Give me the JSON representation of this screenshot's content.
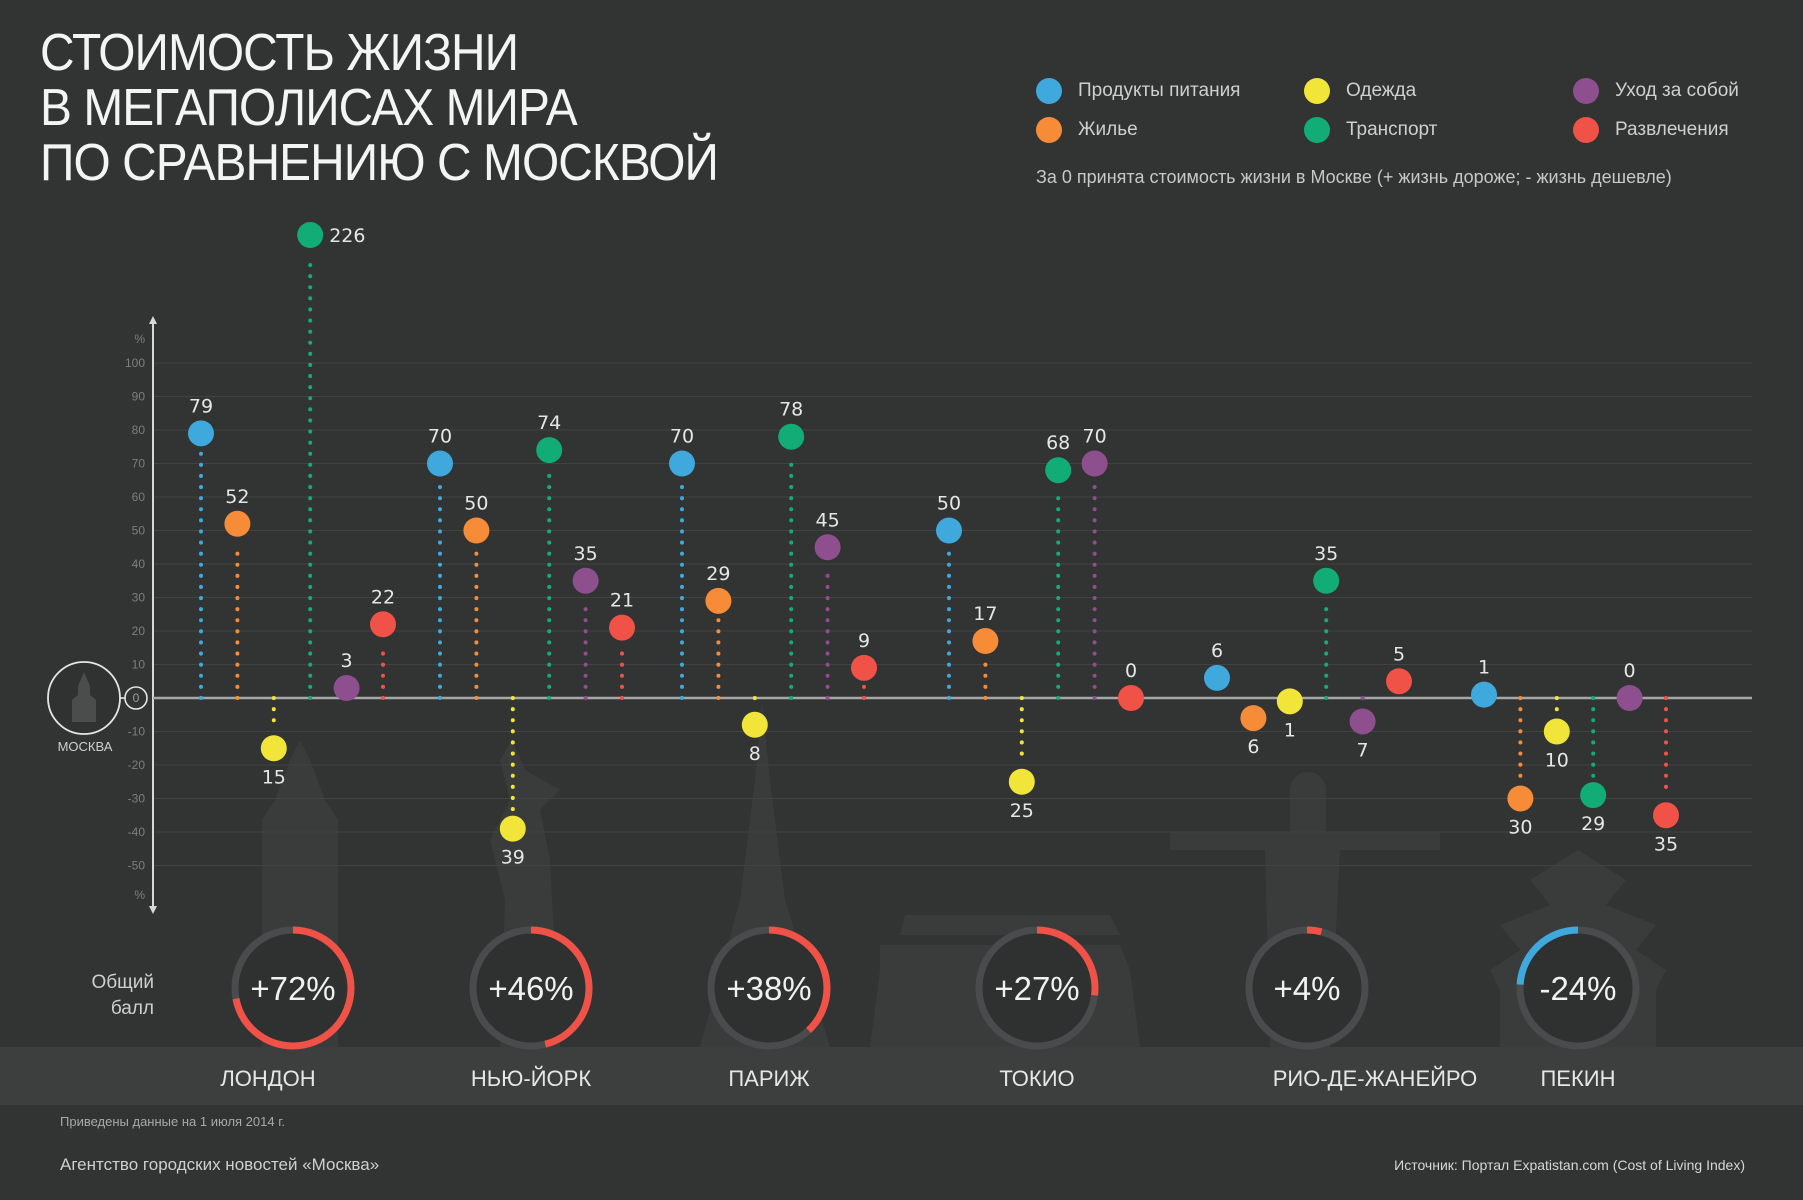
{
  "title_lines": [
    "СТОИМОСТЬ ЖИЗНИ",
    "В МЕГАПОЛИСАХ МИРА",
    "ПО СРАВНЕНИЮ С МОСКВОЙ"
  ],
  "legend": [
    {
      "label": "Продукты питания",
      "color": "#3fa8dc"
    },
    {
      "label": "Жилье",
      "color": "#f68b38"
    },
    {
      "label": "Одежда",
      "color": "#f2e53a"
    },
    {
      "label": "Транспорт",
      "color": "#12ad76"
    },
    {
      "label": "Уход за собой",
      "color": "#8e4f8e"
    },
    {
      "label": "Развлечения",
      "color": "#f05248"
    }
  ],
  "subtitle": "За 0 принята стоимость жизни в Москве (+ жизнь дороже; - жизнь дешевле)",
  "baseline_label": "МОСКВА",
  "score_label_lines": [
    "Общий",
    "балл"
  ],
  "footnote": "Приведены данные на 1 июля 2014 г.",
  "agency": "Агентство городских новостей «Москва»",
  "source": "Источник: Портал Expatistan.com (Cost of Living Index)",
  "colors": {
    "positive_gauge": "#f05248",
    "negative_gauge": "#3fa8dc",
    "gauge_track": "#4a4b4c"
  },
  "chart_data": {
    "type": "scatter",
    "subtype": "lollipop",
    "title": "СТОИМОСТЬ ЖИЗНИ В МЕГАПОЛИСАХ МИРА ПО СРАВНЕНИЮ С МОСКВОЙ",
    "ylabel": "%",
    "ylim": [
      -60,
      110
    ],
    "yticks": [
      100,
      90,
      80,
      70,
      60,
      50,
      40,
      30,
      20,
      10,
      0,
      -10,
      -20,
      -30,
      -40,
      -50
    ],
    "ytick_labels": [
      "100",
      "90",
      "80",
      "70",
      "60",
      "50",
      "40",
      "30",
      "20",
      "10",
      "0",
      "-10",
      "-20",
      "-30",
      "-40",
      "-50"
    ],
    "grid": true,
    "legend_position": "top-right",
    "categories": [
      "ЛОНДОН",
      "НЬЮ-ЙОРК",
      "ПАРИЖ",
      "ТОКИО",
      "РИО-ДЕ-ЖАНЕЙРО",
      "ПЕКИН"
    ],
    "series": [
      {
        "name": "Продукты питания",
        "values": [
          79,
          70,
          70,
          50,
          6,
          1
        ]
      },
      {
        "name": "Жилье",
        "values": [
          52,
          50,
          29,
          17,
          -6,
          -30
        ]
      },
      {
        "name": "Одежда",
        "values": [
          -15,
          -39,
          -8,
          -25,
          -1,
          -10
        ]
      },
      {
        "name": "Транспорт",
        "values": [
          226,
          74,
          78,
          68,
          35,
          -29
        ]
      },
      {
        "name": "Уход за собой",
        "values": [
          3,
          35,
          45,
          70,
          -7,
          0
        ]
      },
      {
        "name": "Развлечения",
        "values": [
          22,
          21,
          9,
          0,
          5,
          -35
        ]
      }
    ],
    "overall_scores": [
      {
        "city": "ЛОНДОН",
        "value": 72,
        "label": "+72%"
      },
      {
        "city": "НЬЮ-ЙОРК",
        "value": 46,
        "label": "+46%"
      },
      {
        "city": "ПАРИЖ",
        "value": 38,
        "label": "+38%"
      },
      {
        "city": "ТОКИО",
        "value": 27,
        "label": "+27%"
      },
      {
        "city": "РИО-ДЕ-ЖАНЕЙРО",
        "value": 4,
        "label": "+4%"
      },
      {
        "city": "ПЕКИН",
        "value": -24,
        "label": "-24%"
      }
    ]
  }
}
